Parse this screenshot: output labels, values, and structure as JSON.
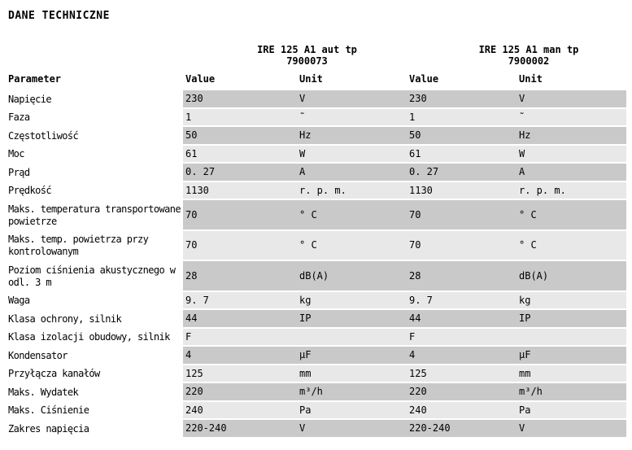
{
  "title": "DANE TECHNICZNE",
  "products": [
    {
      "name": "IRE 125 A1 aut tp",
      "code": "7900073"
    },
    {
      "name": "IRE 125 A1 man tp",
      "code": "7900002"
    }
  ],
  "column_headers": {
    "parameter": "Parameter",
    "value1": "Value",
    "unit1": "Unit",
    "value2": "Value",
    "unit2": "Unit"
  },
  "rows": [
    {
      "parameter": "Napięcie",
      "value1": "230",
      "unit1": "V",
      "value2": "230",
      "unit2": "V"
    },
    {
      "parameter": "Faza",
      "value1": "1",
      "unit1": "˜",
      "value2": "1",
      "unit2": "˜"
    },
    {
      "parameter": "Częstotliwość",
      "value1": "50",
      "unit1": "Hz",
      "value2": "50",
      "unit2": "Hz"
    },
    {
      "parameter": "Moc",
      "value1": "61",
      "unit1": "W",
      "value2": "61",
      "unit2": "W"
    },
    {
      "parameter": "Prąd",
      "value1": "0. 27",
      "unit1": "A",
      "value2": "0. 27",
      "unit2": "A"
    },
    {
      "parameter": "Prędkość",
      "value1": "1130",
      "unit1": "r. p. m.",
      "value2": "1130",
      "unit2": "r. p. m."
    },
    {
      "parameter": "Maks. temperatura transportowane\npowietrze",
      "value1": "70",
      "unit1": "° C",
      "value2": "70",
      "unit2": "° C"
    },
    {
      "parameter": "Maks. temp. powietrza przy\nkontrolowanym",
      "value1": "70",
      "unit1": "° C",
      "value2": "70",
      "unit2": "° C"
    },
    {
      "parameter": "Poziom ciśnienia akustycznego w\nodl. 3 m",
      "value1": "28",
      "unit1": "dB(A)",
      "value2": "28",
      "unit2": "dB(A)"
    },
    {
      "parameter": "Waga",
      "value1": "9. 7",
      "unit1": "kg",
      "value2": "9. 7",
      "unit2": "kg"
    },
    {
      "parameter": "Klasa ochrony, silnik",
      "value1": "44",
      "unit1": "IP",
      "value2": "44",
      "unit2": "IP"
    },
    {
      "parameter": "Klasa izolacji obudowy, silnik",
      "value1": "F",
      "unit1": "",
      "value2": "F",
      "unit2": ""
    },
    {
      "parameter": "Kondensator",
      "value1": "4",
      "unit1": "μF",
      "value2": "4",
      "unit2": "μF"
    },
    {
      "parameter": "Przyłącza kanałów",
      "value1": "125",
      "unit1": "mm",
      "value2": "125",
      "unit2": "mm"
    },
    {
      "parameter": "Maks. Wydatek",
      "value1": "220",
      "unit1": "m³/h",
      "value2": "220",
      "unit2": "m³/h"
    },
    {
      "parameter": "Maks. Ciśnienie",
      "value1": "240",
      "unit1": "Pa",
      "value2": "240",
      "unit2": "Pa"
    },
    {
      "parameter": "Zakres napięcia",
      "value1": "220-240",
      "unit1": "V",
      "value2": "220-240",
      "unit2": "V"
    }
  ],
  "colors": {
    "row_dark": "#c9c9c9",
    "row_light": "#e8e8e8",
    "text": "#000000",
    "background": "#ffffff"
  }
}
